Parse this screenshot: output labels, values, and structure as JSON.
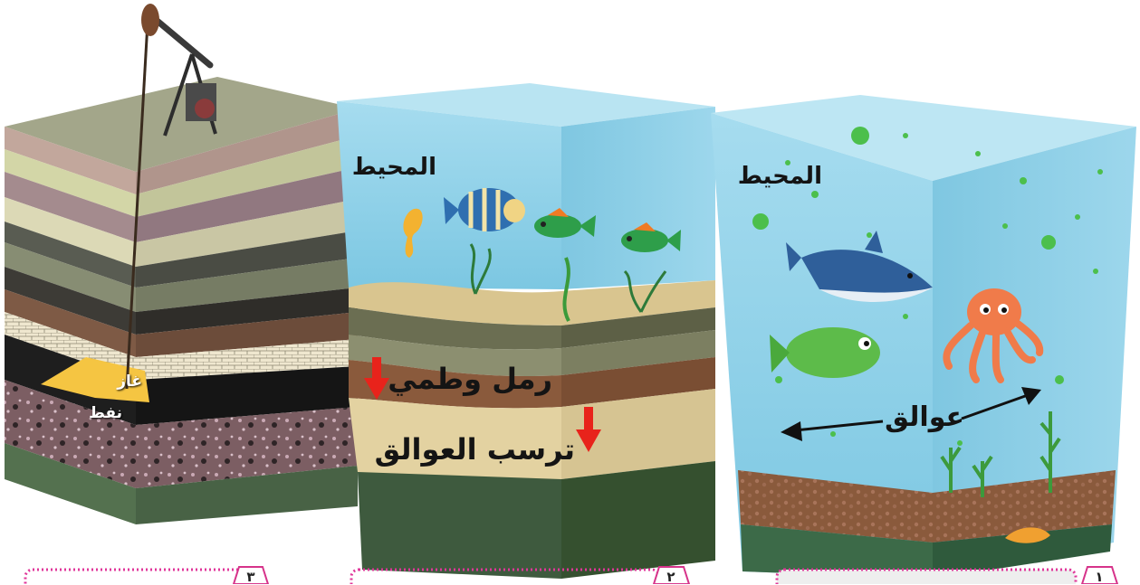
{
  "panels": [
    {
      "number": "١",
      "ocean_label": "المحيط",
      "plankton_label": "عوالق"
    },
    {
      "number": "٢",
      "ocean_label": "المحيط",
      "sediment_label": "رمل وطمي",
      "deposit_label": "ترسب العوالق"
    },
    {
      "number": "٣",
      "gas_label": "غاز",
      "oil_label": "نفط"
    }
  ],
  "colors": {
    "water": "#8fd3ea",
    "water_top": "#b8e6f4",
    "sand": "#e6d5a8",
    "soil": "#8a5a3c",
    "rock_dark": "#3c5a3e",
    "oil": "#1d1d1d",
    "gas": "#f5c542",
    "arrow_red": "#e8231b",
    "badge_border": "#d6338a"
  }
}
